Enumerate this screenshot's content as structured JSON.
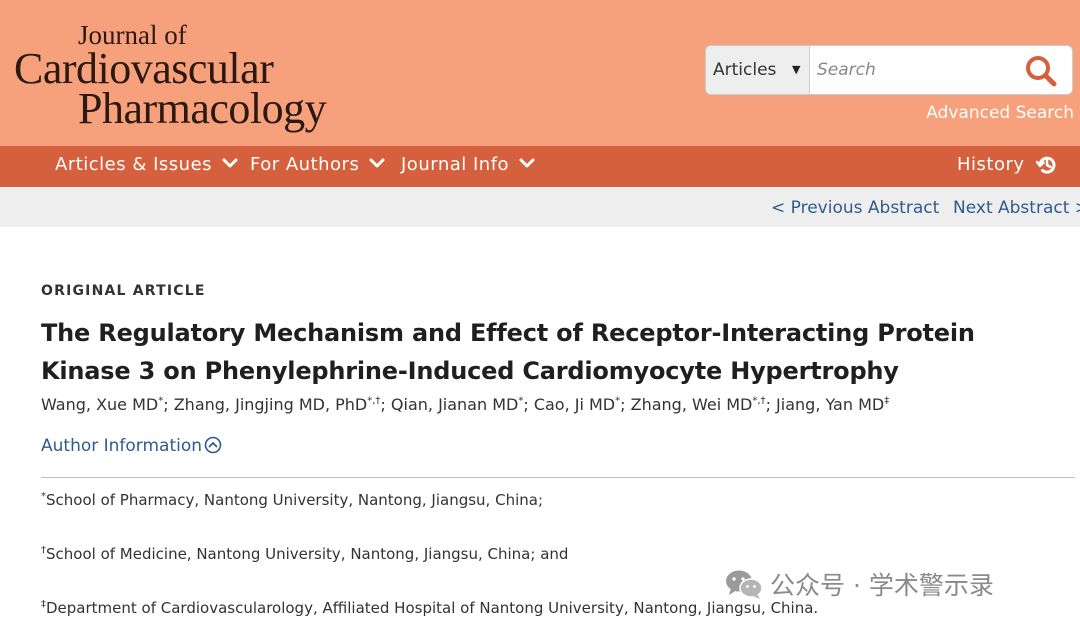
{
  "journal": {
    "logo_line1": "Journal of",
    "logo_line2": "Cardiovascular",
    "logo_line3": "Pharmacology"
  },
  "search": {
    "scope_selected": "Articles",
    "placeholder": "Search",
    "advanced_label": "Advanced Search"
  },
  "nav": {
    "items": [
      {
        "label": "Articles & Issues"
      },
      {
        "label": "For Authors"
      },
      {
        "label": "Journal Info"
      }
    ],
    "history_label": "History"
  },
  "subnav": {
    "previous": "< Previous Abstract",
    "next": "Next Abstract >"
  },
  "article": {
    "type": "ORIGINAL ARTICLE",
    "title": "The Regulatory Mechanism and Effect of Receptor-Interacting Protein Kinase 3 on Phenylephrine-Induced Cardiomyocyte Hypertrophy",
    "authors": [
      {
        "name": "Wang, Xue MD",
        "marks": "*"
      },
      {
        "name": "Zhang, Jingjing MD, PhD",
        "marks": "*,†"
      },
      {
        "name": "Qian, Jianan MD",
        "marks": "*"
      },
      {
        "name": "Cao, Ji MD",
        "marks": "*"
      },
      {
        "name": "Zhang, Wei MD",
        "marks": "*,†"
      },
      {
        "name": "Jiang, Yan MD",
        "marks": "‡"
      }
    ],
    "author_info_label": "Author Information",
    "affiliations": [
      {
        "mark": "*",
        "text": "School of Pharmacy, Nantong University, Nantong, Jiangsu, China;"
      },
      {
        "mark": "†",
        "text": "School of Medicine, Nantong University, Nantong, Jiangsu, China; and"
      },
      {
        "mark": "‡",
        "text": "Department of Cardiovascularology, Affiliated Hospital of Nantong University, Nantong, Jiangsu, China."
      }
    ]
  },
  "watermark": {
    "text": "公众号 · 学术警示录",
    "icon": "wechat-icon"
  },
  "colors": {
    "header_bg": "#f6a07c",
    "nav_bg": "#d4603d",
    "search_icon": "#d4603d",
    "link": "#2f5b8e"
  }
}
